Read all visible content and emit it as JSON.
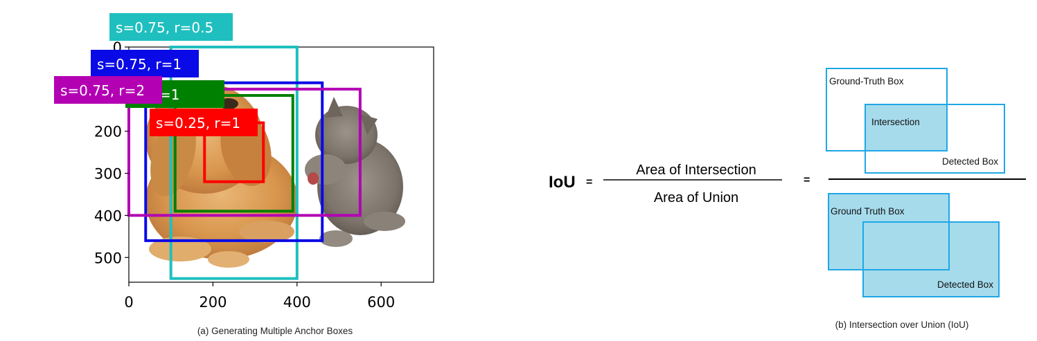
{
  "panel_a": {
    "caption": "(a) Generating Multiple Anchor Boxes",
    "x_ticks": [
      "0",
      "200",
      "400",
      "600"
    ],
    "y_ticks": [
      "0",
      "200",
      "300",
      "400",
      "500"
    ],
    "anchors": [
      {
        "label": "s=0.75, r=0.5",
        "color": "#1fbfbf",
        "x0": 100,
        "y0": 0,
        "x1": 400,
        "y1": 550
      },
      {
        "label": "s=0.75, r=1",
        "color": "#0a0ae6",
        "x0": 40,
        "y0": 85,
        "x1": 460,
        "y1": 460
      },
      {
        "label": "s=0.75, r=2",
        "color": "#b300b3",
        "x0": 0,
        "y0": 100,
        "x1": 550,
        "y1": 400
      },
      {
        "label": ".5, r=1",
        "color": "#008000",
        "x0": 110,
        "y0": 115,
        "x1": 390,
        "y1": 390
      },
      {
        "label": "s=0.25, r=1",
        "color": "#ff0000",
        "x0": 180,
        "y0": 180,
        "x1": 320,
        "y1": 320
      }
    ]
  },
  "panel_b": {
    "caption": "(b) Intersection over Union (IoU)",
    "iou_label": "IoU",
    "equals": "=",
    "numerator": "Area of Intersection",
    "denominator": "Area of Union",
    "equals2": "=",
    "top_gt_label": "Ground-Truth Box",
    "top_intersection_label": "Intersection",
    "top_detected_label": "Detected Box",
    "bottom_gt_label": "Ground Truth Box",
    "bottom_detected_label": "Detected Box",
    "box_stroke": "#1ea7e6",
    "box_fill": "#a6dbec"
  }
}
